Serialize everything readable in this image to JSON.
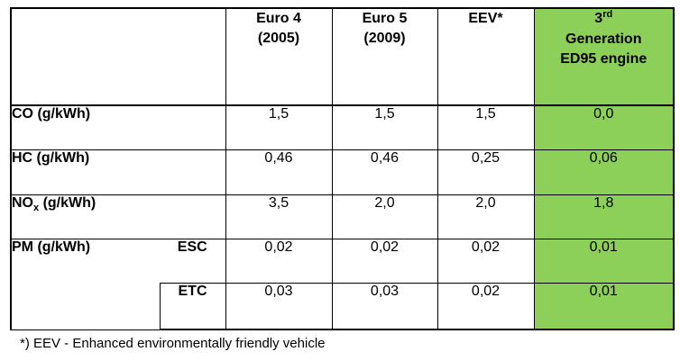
{
  "headers": {
    "euro4_line1": "Euro 4",
    "euro4_line2": "(2005)",
    "euro5_line1": "Euro 5",
    "euro5_line2": "(2009)",
    "eev": "EEV*",
    "gen_number": "3",
    "gen_suffix": "rd",
    "gen_line2": "Generation",
    "gen_line3": "ED95 engine"
  },
  "rows": {
    "co": {
      "label": "CO (g/kWh)",
      "values": [
        "1,5",
        "1,5",
        "1,5",
        "0,0"
      ]
    },
    "hc": {
      "label": "HC (g/kWh)",
      "values": [
        "0,46",
        "0,46",
        "0,25",
        "0,06"
      ]
    },
    "nox": {
      "label_main": "NO",
      "label_sub": "x",
      "label_rest": " (g/kWh)",
      "values": [
        "3,5",
        "2,0",
        "2,0",
        "1,8"
      ]
    },
    "pm": {
      "label": "PM (g/kWh)"
    },
    "esc": {
      "label": "ESC",
      "values": [
        "0,02",
        "0,02",
        "0,02",
        "0,01"
      ]
    },
    "etc": {
      "label": "ETC",
      "values": [
        "0,03",
        "0,03",
        "0,02",
        "0,01"
      ]
    }
  },
  "footnote": "*) EEV - Enhanced environmentally friendly vehicle",
  "colors": {
    "highlight_column": "#8cd05a"
  }
}
